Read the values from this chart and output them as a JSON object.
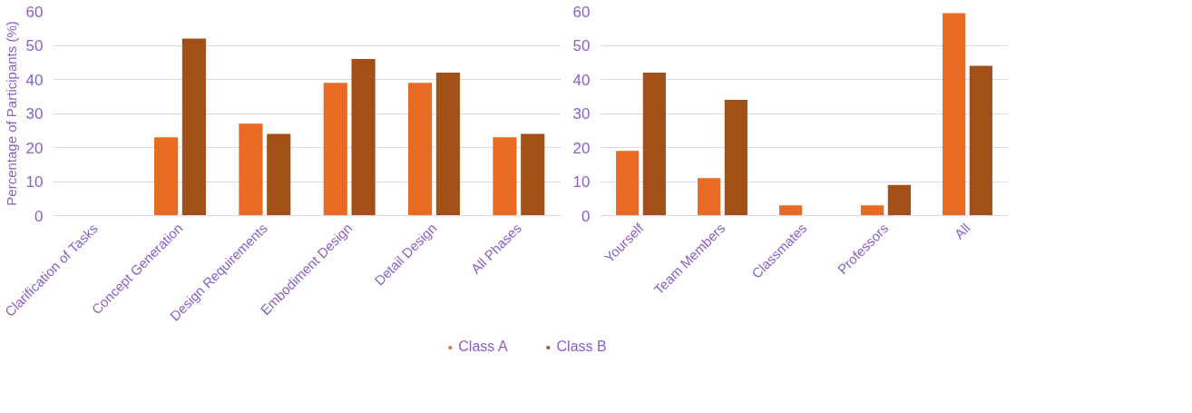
{
  "chart_data": [
    {
      "type": "bar",
      "ylabel": "Percentage of Participants (%)",
      "categories": [
        "Clarification of Tasks",
        "Concept Generation",
        "Design Requirements",
        "Embodiment Design",
        "Detail Design",
        "All Phases"
      ],
      "series": [
        {
          "name": "Class A",
          "color": "#e96a22",
          "values": [
            0,
            23,
            27,
            39,
            39,
            23
          ]
        },
        {
          "name": "Class B",
          "color": "#a25017",
          "values": [
            0,
            52,
            24,
            46,
            42,
            24
          ]
        }
      ],
      "ylim": [
        0,
        60
      ],
      "yticks": [
        0,
        10,
        20,
        30,
        40,
        50,
        60
      ],
      "grid": "y",
      "legend": "bottom"
    },
    {
      "type": "bar",
      "categories": [
        "Yourself",
        "Team Members",
        "Classmates",
        "Professors",
        "All"
      ],
      "series": [
        {
          "color": "#e96a22",
          "values": [
            19,
            11,
            3,
            3,
            59.5
          ]
        },
        {
          "color": "#a25017",
          "values": [
            42,
            34,
            0,
            9,
            44
          ]
        }
      ],
      "ylim": [
        0,
        60
      ],
      "yticks": [
        0,
        10,
        20,
        30,
        40,
        50,
        60
      ],
      "grid": "y"
    }
  ]
}
